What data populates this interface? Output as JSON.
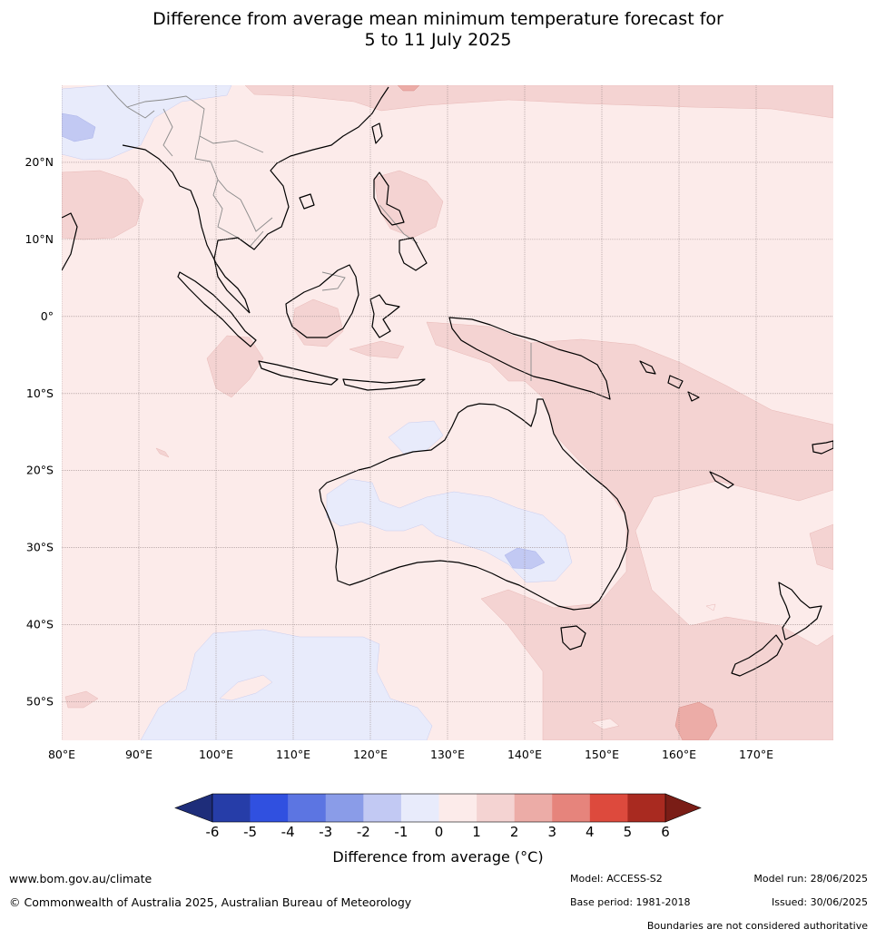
{
  "title_line1": "Difference from average mean minimum temperature forecast for",
  "title_line2": "5 to 11 July 2025",
  "map": {
    "lon_range": [
      80,
      180
    ],
    "lat_range": [
      -55,
      30
    ],
    "lat_labels": [
      {
        "lat": 20,
        "label": "20°N"
      },
      {
        "lat": 10,
        "label": "10°N"
      },
      {
        "lat": 0,
        "label": "0°"
      },
      {
        "lat": -10,
        "label": "10°S"
      },
      {
        "lat": -20,
        "label": "20°S"
      },
      {
        "lat": -30,
        "label": "30°S"
      },
      {
        "lat": -40,
        "label": "40°S"
      },
      {
        "lat": -50,
        "label": "50°S"
      }
    ],
    "lon_labels": [
      {
        "lon": 80,
        "label": "80°E"
      },
      {
        "lon": 90,
        "label": "90°E"
      },
      {
        "lon": 100,
        "label": "100°E"
      },
      {
        "lon": 110,
        "label": "110°E"
      },
      {
        "lon": 120,
        "label": "120°E"
      },
      {
        "lon": 130,
        "label": "130°E"
      },
      {
        "lon": 140,
        "label": "140°E"
      },
      {
        "lon": 150,
        "label": "150°E"
      },
      {
        "lon": 160,
        "label": "160°E"
      },
      {
        "lon": 170,
        "label": "170°E"
      }
    ],
    "background_color": "#fcebea",
    "land_outline_color": "#000000",
    "border_color": "#8a8a8a",
    "grid_color": "#9a8a8a"
  },
  "colorbar": {
    "ticks": [
      "-6",
      "-5",
      "-4",
      "-3",
      "-2",
      "-1",
      "0",
      "1",
      "2",
      "3",
      "4",
      "5",
      "6"
    ],
    "colors": [
      "#263da8",
      "#3050e0",
      "#5c75e2",
      "#8a9ce8",
      "#c2c9f3",
      "#e8ebfb",
      "#fcebea",
      "#f4d3d2",
      "#ecaca7",
      "#e6847c",
      "#dd4a3d",
      "#a92a20"
    ],
    "under_color": "#1e2d7a",
    "over_color": "#7a1d16",
    "label": "Difference from average (°C)"
  },
  "footer": {
    "website": "www.bom.gov.au/climate",
    "copyright": "© Commonwealth of Australia 2025, Australian Bureau of Meteorology",
    "model": "Model: ACCESS-S2",
    "base_period": "Base period: 1981-2018",
    "model_run": "Model run: 28/06/2025",
    "issued": "Issued: 30/06/2025",
    "disclaimer": "Boundaries are not considered authoritative"
  }
}
